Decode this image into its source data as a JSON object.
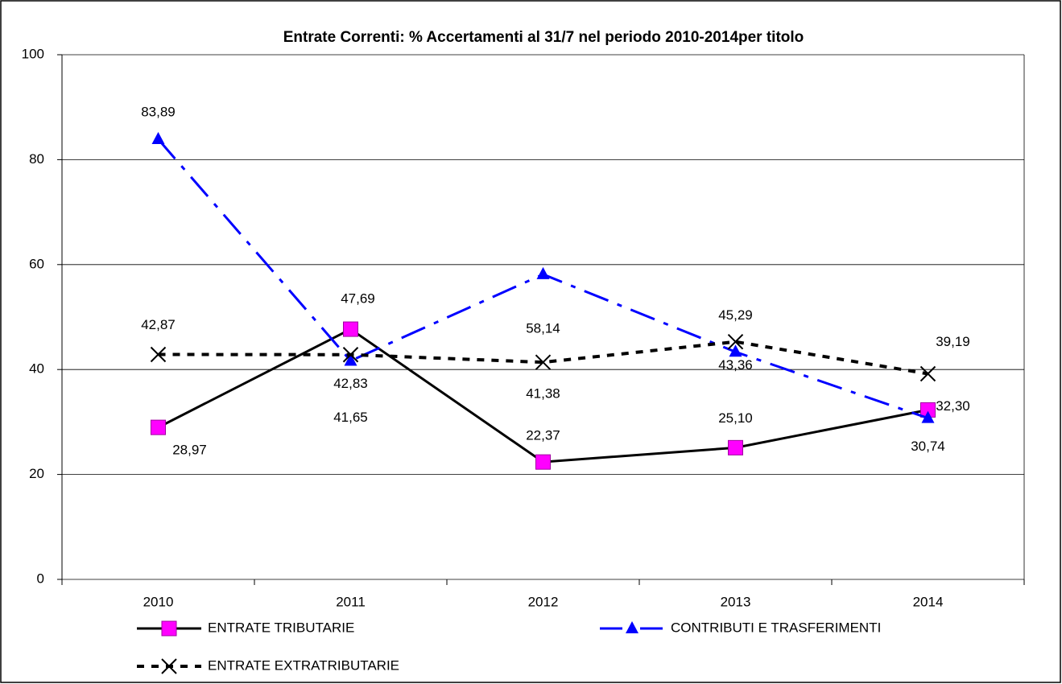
{
  "chart_data": {
    "type": "line",
    "title": "Entrate Correnti: % Accertamenti al 31/7 nel periodo 2010-2014per titolo",
    "categories": [
      "2010",
      "2011",
      "2012",
      "2013",
      "2014"
    ],
    "series": [
      {
        "name": "ENTRATE TRIBUTARIE",
        "color": "#000000",
        "marker": "square",
        "marker_color": "#ff00ff",
        "line_style": "solid",
        "values": [
          28.97,
          47.69,
          22.37,
          25.1,
          32.3
        ],
        "value_labels": [
          "28,97",
          "47,69",
          "22,37",
          "25,10",
          "32,30"
        ]
      },
      {
        "name": "CONTRIBUTI E TRASFERIMENTI",
        "color": "#0000ff",
        "marker": "triangle",
        "marker_color": "#0000ff",
        "line_style": "dashdot",
        "values": [
          83.89,
          41.65,
          58.14,
          43.36,
          30.74
        ],
        "value_labels": [
          "83,89",
          "41,65",
          "58,14",
          "43,36",
          "30,74"
        ]
      },
      {
        "name": "ENTRATE EXTRATRIBUTARIE",
        "color": "#000000",
        "marker": "x",
        "marker_color": "#000000",
        "line_style": "dotted",
        "values": [
          42.87,
          42.83,
          41.38,
          45.29,
          39.19
        ],
        "value_labels": [
          "42,87",
          "42,83",
          "41,38",
          "45,29",
          "39,19"
        ]
      }
    ],
    "ylim": [
      0,
      100
    ],
    "yticks": [
      0,
      20,
      40,
      60,
      80,
      100
    ],
    "grid": true,
    "legend": "bottom"
  }
}
